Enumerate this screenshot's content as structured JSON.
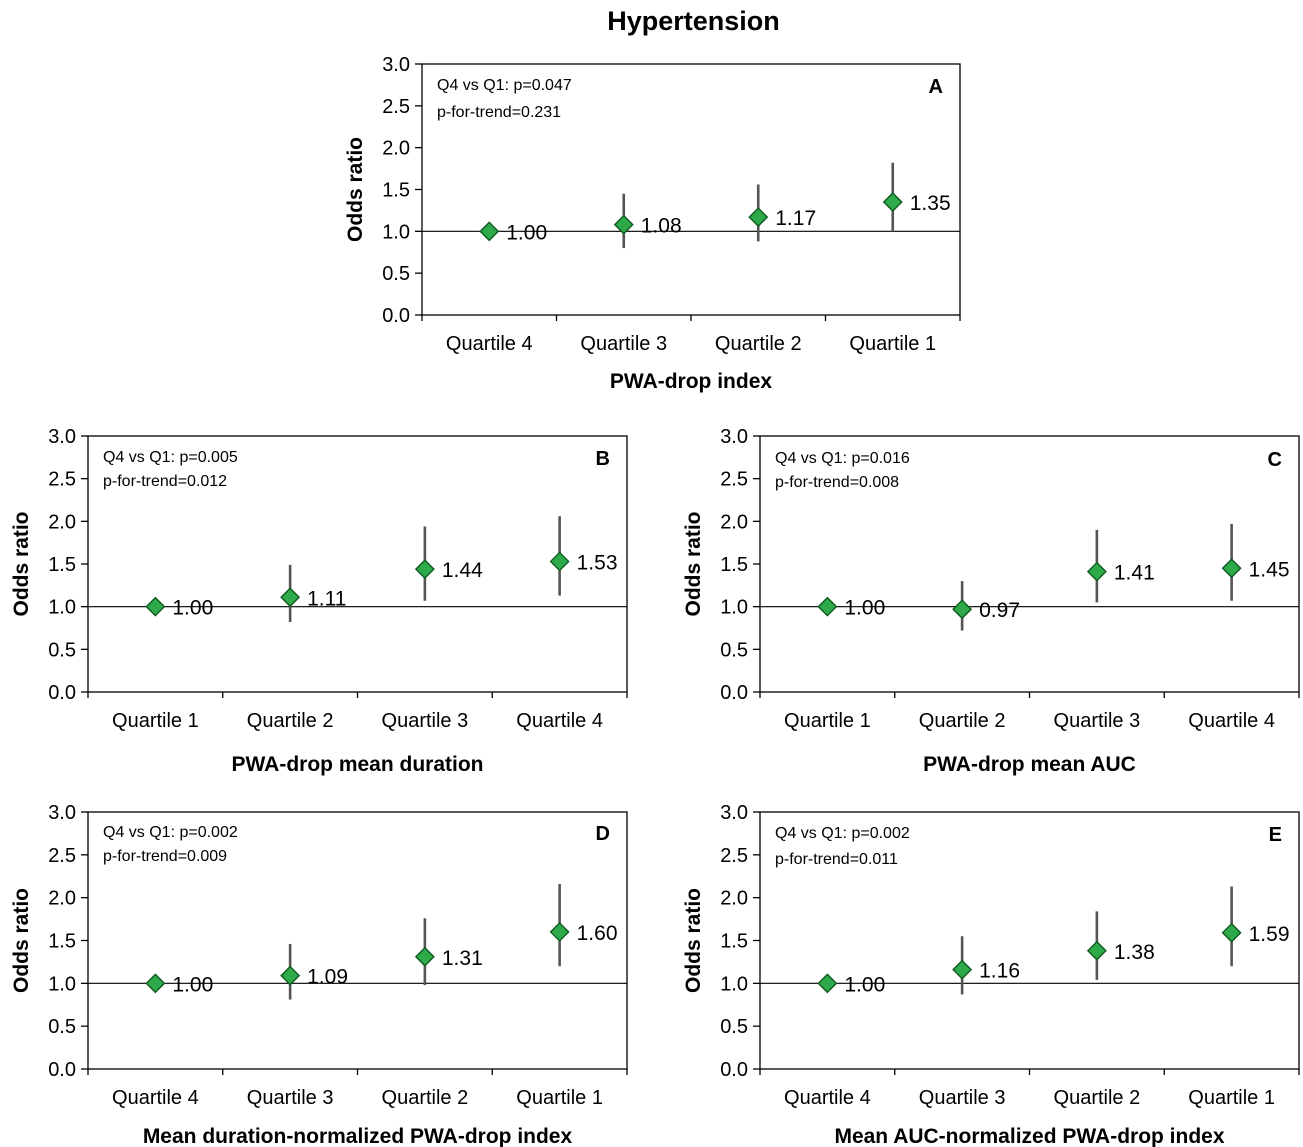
{
  "title": "Hypertension",
  "colors": {
    "marker": "#2eaa4a",
    "marker_stroke": "#0f5a1f",
    "errorbar": "#555555",
    "axis": "#000000"
  },
  "chart_data": [
    {
      "panel": "A",
      "type": "scatter",
      "categories": [
        "Quartile 4",
        "Quartile 3",
        "Quartile 2",
        "Quartile 1"
      ],
      "values": [
        1.0,
        1.08,
        1.17,
        1.35
      ],
      "lower": [
        1.0,
        0.8,
        0.88,
        1.0
      ],
      "upper": [
        1.0,
        1.45,
        1.56,
        1.82
      ],
      "value_labels": [
        "1.00",
        "1.08",
        "1.17",
        "1.35"
      ],
      "yticks": [
        "0.0",
        "0.5",
        "1.0",
        "1.5",
        "2.0",
        "2.5",
        "3.0"
      ],
      "ylim": [
        0,
        3
      ],
      "reference_line": 1.0,
      "xlabel": "PWA-drop index",
      "ylabel": "Odds ratio",
      "notes": [
        "Q4 vs Q1: p=0.047",
        "p-for-trend=0.231"
      ]
    },
    {
      "panel": "B",
      "type": "scatter",
      "categories": [
        "Quartile 1",
        "Quartile 2",
        "Quartile 3",
        "Quartile 4"
      ],
      "values": [
        1.0,
        1.11,
        1.44,
        1.53
      ],
      "lower": [
        1.0,
        0.82,
        1.07,
        1.13
      ],
      "upper": [
        1.0,
        1.49,
        1.94,
        2.06
      ],
      "value_labels": [
        "1.00",
        "1.11",
        "1.44",
        "1.53"
      ],
      "yticks": [
        "0.0",
        "0.5",
        "1.0",
        "1.5",
        "2.0",
        "2.5",
        "3.0"
      ],
      "ylim": [
        0,
        3
      ],
      "reference_line": 1.0,
      "xlabel": "PWA-drop mean duration",
      "ylabel": "Odds ratio",
      "notes": [
        "Q4 vs Q1:  p=0.005",
        "p-for-trend=0.012"
      ]
    },
    {
      "panel": "C",
      "type": "scatter",
      "categories": [
        "Quartile 1",
        "Quartile 2",
        "Quartile 3",
        "Quartile 4"
      ],
      "values": [
        1.0,
        0.97,
        1.41,
        1.45
      ],
      "lower": [
        1.0,
        0.72,
        1.05,
        1.07
      ],
      "upper": [
        1.0,
        1.3,
        1.9,
        1.97
      ],
      "value_labels": [
        "1.00",
        "0.97",
        "1.41",
        "1.45"
      ],
      "yticks": [
        "0.0",
        "0.5",
        "1.0",
        "1.5",
        "2.0",
        "2.5",
        "3.0"
      ],
      "ylim": [
        0,
        3
      ],
      "reference_line": 1.0,
      "xlabel": "PWA-drop mean AUC",
      "ylabel": "Odds ratio",
      "notes": [
        "Q4 vs Q1: p=0.016",
        "p-for-trend=0.008"
      ]
    },
    {
      "panel": "D",
      "type": "scatter",
      "categories": [
        "Quartile 4",
        "Quartile 3",
        "Quartile 2",
        "Quartile 1"
      ],
      "values": [
        1.0,
        1.09,
        1.31,
        1.6
      ],
      "lower": [
        1.0,
        0.81,
        0.98,
        1.2
      ],
      "upper": [
        1.0,
        1.46,
        1.76,
        2.16
      ],
      "value_labels": [
        "1.00",
        "1.09",
        "1.31",
        "1.60"
      ],
      "yticks": [
        "0.0",
        "0.5",
        "1.0",
        "1.5",
        "2.0",
        "2.5",
        "3.0"
      ],
      "ylim": [
        0,
        3
      ],
      "reference_line": 1.0,
      "xlabel": "Mean duration-normalized PWA-drop index",
      "ylabel": "Odds ratio",
      "notes": [
        "Q4 vs Q1: p=0.002",
        "p-for-trend=0.009"
      ]
    },
    {
      "panel": "E",
      "type": "scatter",
      "categories": [
        "Quartile 4",
        "Quartile 3",
        "Quartile 2",
        "Quartile 1"
      ],
      "values": [
        1.0,
        1.16,
        1.38,
        1.59
      ],
      "lower": [
        1.0,
        0.87,
        1.04,
        1.2
      ],
      "upper": [
        1.0,
        1.55,
        1.84,
        2.13
      ],
      "value_labels": [
        "1.00",
        "1.16",
        "1.38",
        "1.59"
      ],
      "yticks": [
        "0.0",
        "0.5",
        "1.0",
        "1.5",
        "2.0",
        "2.5",
        "3.0"
      ],
      "ylim": [
        0,
        3
      ],
      "reference_line": 1.0,
      "xlabel": "Mean AUC-normalized PWA-drop index",
      "ylabel": "Odds ratio",
      "notes": [
        "Q4 vs Q1: p=0.002",
        "p-for-trend=0.011"
      ]
    }
  ]
}
